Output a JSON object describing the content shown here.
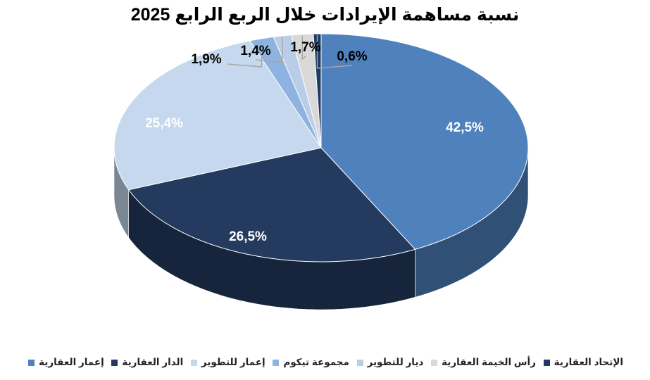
{
  "chart_data": {
    "type": "pie",
    "title": "نسبة مساهمة الإيرادات خلال الربع الرابع 2025",
    "slices": [
      {
        "name": "إعمار العقارية",
        "value": 42.5,
        "label": "42,5%",
        "color": "#4f81bd"
      },
      {
        "name": "الدار العقارية",
        "value": 26.5,
        "label": "26,5%",
        "color": "#243b5f"
      },
      {
        "name": "إعمار للتطوير",
        "value": 25.4,
        "label": "25,4%",
        "color": "#c6d8ee"
      },
      {
        "name": "مجموعة تيكوم",
        "value": 1.9,
        "label": "1,9%",
        "color": "#8fb3e0"
      },
      {
        "name": "ديار للتطوير",
        "value": 1.4,
        "label": "1,4%",
        "color": "#b9cde8"
      },
      {
        "name": "رأس الخيمة العقارية",
        "value": 1.7,
        "label": "1,7%",
        "color": "#d9d9d9"
      },
      {
        "name": "الإتحاد العقارية",
        "value": 0.6,
        "label": "0,6%",
        "color": "#1f3b63"
      }
    ],
    "legend_position": "bottom"
  }
}
